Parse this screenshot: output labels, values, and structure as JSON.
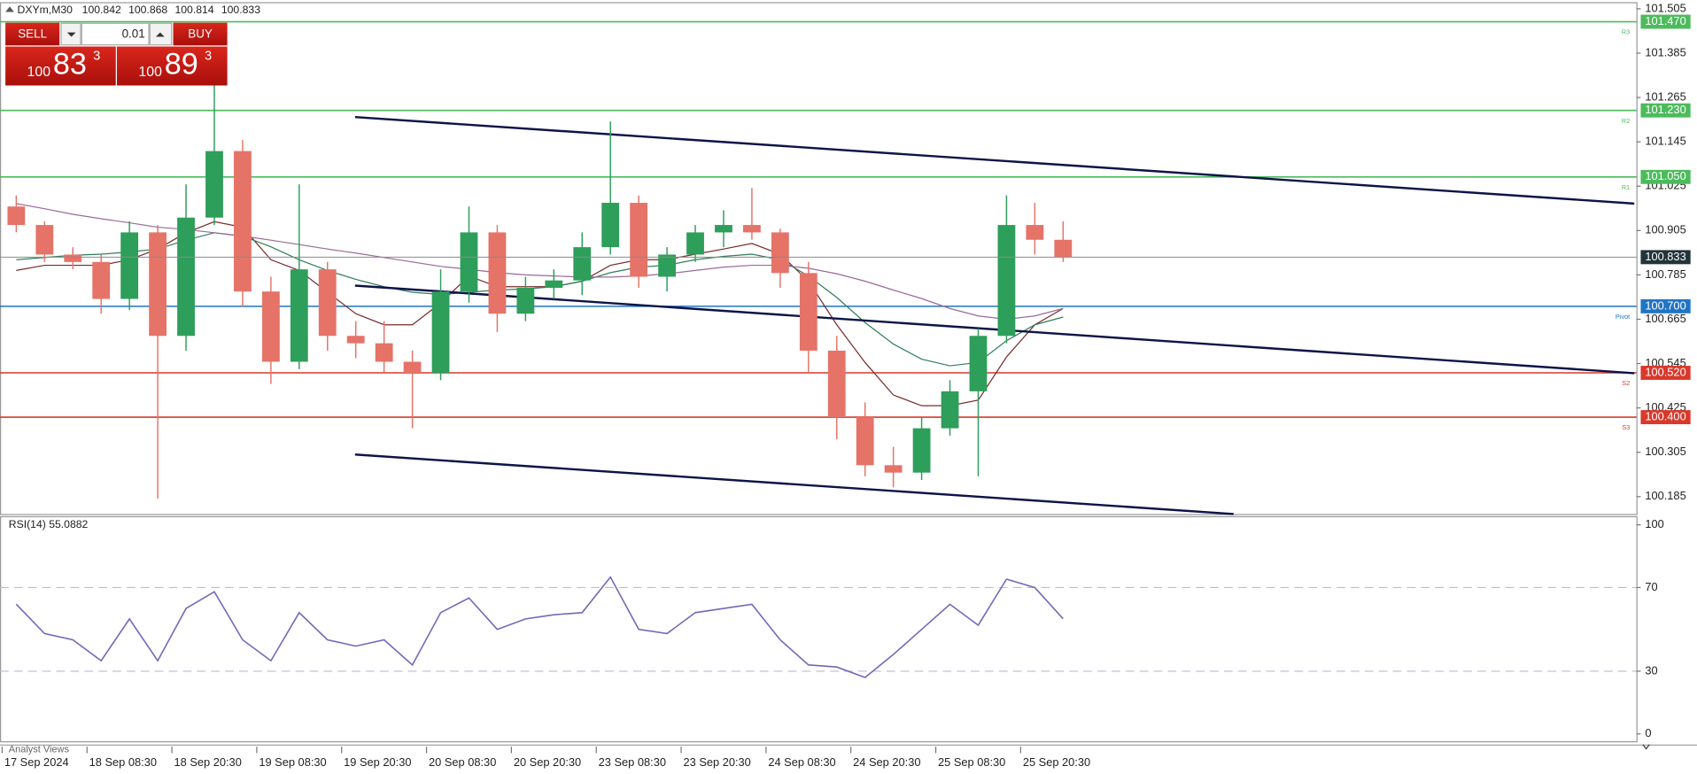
{
  "chart_data": [
    {
      "type": "candlestick",
      "title": "DXYm,M30",
      "ohlc_header": [
        100.842,
        100.868,
        100.814,
        100.833
      ],
      "x": [
        4,
        12,
        20,
        28,
        36,
        44,
        52,
        60,
        68,
        76,
        84,
        92,
        100,
        108,
        116,
        124,
        132,
        140,
        148,
        156,
        164,
        172,
        180,
        188,
        196,
        204,
        212,
        220,
        228,
        236,
        244,
        252,
        260,
        268,
        276,
        284,
        292,
        300
      ],
      "open": [
        100.97,
        100.92,
        100.84,
        100.82,
        100.72,
        100.9,
        100.62,
        100.94,
        101.12,
        100.74,
        100.55,
        100.8,
        100.62,
        100.6,
        100.55,
        100.52,
        100.74,
        100.9,
        100.68,
        100.75,
        100.77,
        100.86,
        100.98,
        100.78,
        100.84,
        100.9,
        100.92,
        100.9,
        100.79,
        100.58,
        100.4,
        100.27,
        100.25,
        100.37,
        100.47,
        100.62,
        100.92,
        100.88
      ],
      "high": [
        101.0,
        100.93,
        100.86,
        100.84,
        100.93,
        100.92,
        101.03,
        101.34,
        101.15,
        100.78,
        101.03,
        100.82,
        100.66,
        100.66,
        100.58,
        100.8,
        100.97,
        100.92,
        100.78,
        100.8,
        100.9,
        101.2,
        101.0,
        100.86,
        100.92,
        100.96,
        101.02,
        100.91,
        100.82,
        100.62,
        100.44,
        100.32,
        100.4,
        100.5,
        100.64,
        101.0,
        100.98,
        100.93
      ],
      "low": [
        100.9,
        100.82,
        100.8,
        100.68,
        100.69,
        100.18,
        100.58,
        100.92,
        100.7,
        100.49,
        100.53,
        100.58,
        100.56,
        100.52,
        100.37,
        100.5,
        100.71,
        100.63,
        100.66,
        100.72,
        100.73,
        100.84,
        100.75,
        100.74,
        100.82,
        100.86,
        100.88,
        100.75,
        100.52,
        100.34,
        100.24,
        100.21,
        100.23,
        100.35,
        100.24,
        100.6,
        100.84,
        100.82
      ],
      "close": [
        100.92,
        100.84,
        100.82,
        100.72,
        100.9,
        100.62,
        100.94,
        101.12,
        100.74,
        100.55,
        100.8,
        100.62,
        100.6,
        100.55,
        100.52,
        100.74,
        100.9,
        100.68,
        100.75,
        100.77,
        100.86,
        100.98,
        100.78,
        100.84,
        100.9,
        100.92,
        100.9,
        100.79,
        100.58,
        100.4,
        100.27,
        100.25,
        100.37,
        100.47,
        100.62,
        100.92,
        100.88,
        100.833
      ],
      "up_color": "#2e9e5b",
      "down_color": "#e57368",
      "overlays": [
        {
          "color": "#7a2a2a",
          "values": [
            100.797,
            100.811,
            100.811,
            100.811,
            100.826,
            100.855,
            100.899,
            100.929,
            100.914,
            100.826,
            100.797,
            100.738,
            100.68,
            100.65,
            100.65,
            100.709,
            100.782,
            100.753,
            100.753,
            100.753,
            100.768,
            100.811,
            100.826,
            100.826,
            100.841,
            100.855,
            100.87,
            100.841,
            100.768,
            100.65,
            100.548,
            100.46,
            100.431,
            100.431,
            100.446,
            100.563,
            100.65,
            100.694
          ]
        },
        {
          "color": "#2f7d5a",
          "values": [
            100.826,
            100.832,
            100.838,
            100.841,
            100.847,
            100.855,
            100.879,
            100.899,
            100.89,
            100.861,
            100.826,
            100.797,
            100.773,
            100.753,
            100.738,
            100.732,
            100.738,
            100.744,
            100.747,
            100.753,
            100.768,
            100.791,
            100.806,
            100.811,
            100.826,
            100.835,
            100.841,
            100.826,
            100.782,
            100.724,
            100.656,
            100.598,
            100.557,
            100.539,
            100.548,
            100.607,
            100.65,
            100.671
          ]
        },
        {
          "color": "#9a6a9a",
          "values": [
            100.978,
            100.964,
            100.949,
            100.937,
            100.926,
            100.914,
            100.908,
            100.899,
            100.89,
            100.879,
            100.867,
            100.855,
            100.844,
            100.832,
            100.82,
            100.808,
            100.8,
            100.791,
            100.785,
            100.782,
            100.779,
            100.779,
            100.782,
            100.788,
            100.797,
            100.806,
            100.811,
            100.811,
            100.803,
            100.788,
            100.768,
            100.744,
            100.721,
            100.694,
            100.674,
            100.665,
            100.674,
            100.694
          ]
        }
      ],
      "trendlines": [
        {
          "x": [
            99.8,
            461.5
          ],
          "y": [
            101.212,
            100.978
          ]
        },
        {
          "x": [
            99.8,
            461.5
          ],
          "y": [
            100.756,
            100.519
          ]
        },
        {
          "x": [
            99.8,
            348.2
          ],
          "y": [
            100.299,
            100.138
          ]
        }
      ],
      "levels": [
        {
          "value": 101.47,
          "label": "101.470",
          "tag": "R3",
          "color": "#4cbb5c"
        },
        {
          "value": 101.23,
          "label": "101.230",
          "tag": "R2",
          "color": "#4cbb5c"
        },
        {
          "value": 101.05,
          "label": "101.050",
          "tag": "R1",
          "color": "#4cbb5c"
        },
        {
          "value": 100.7,
          "label": "100.700",
          "tag": "Pivot",
          "color": "#1f74c4"
        },
        {
          "value": 100.52,
          "label": "100.520",
          "tag": "S2",
          "color": "#d9382b"
        },
        {
          "value": 100.4,
          "label": "100.400",
          "tag": "S3",
          "color": "#d9382b"
        }
      ],
      "last_price": 100.833,
      "xlim": [
        -0.6,
        462.1
      ],
      "ylim": [
        100.138,
        101.52
      ],
      "yticks": [
        101.505,
        101.385,
        101.265,
        101.145,
        101.025,
        100.905,
        100.785,
        100.665,
        100.545,
        100.425,
        100.305,
        100.185
      ]
    },
    {
      "type": "line",
      "title": "RSI(14) 55.0882",
      "x": [
        4,
        12,
        20,
        28,
        36,
        44,
        52,
        60,
        68,
        76,
        84,
        92,
        100,
        108,
        116,
        124,
        132,
        140,
        148,
        156,
        164,
        172,
        180,
        188,
        196,
        204,
        212,
        220,
        228,
        236,
        244,
        252,
        260,
        268,
        276,
        284,
        292,
        300
      ],
      "values": [
        62,
        48,
        45,
        35,
        55,
        35,
        60,
        68,
        45,
        35,
        58,
        45,
        42,
        45,
        33,
        58,
        65,
        50,
        55,
        57,
        58,
        75,
        50,
        48,
        58,
        60,
        62,
        45,
        33,
        32,
        27,
        38,
        50,
        62,
        52,
        74,
        70,
        55.09
      ],
      "color": "#7467b8",
      "levels": [
        70,
        30
      ],
      "xlim": [
        -0.6,
        462.1
      ],
      "ylim": [
        -4,
        103.6
      ],
      "yticks": [
        0,
        30,
        70,
        100
      ],
      "xticks": [
        {
          "value": 0,
          "label": "17 Sep 2024"
        },
        {
          "value": 24,
          "label": "18 Sep 08:30"
        },
        {
          "value": 48,
          "label": "18 Sep 20:30"
        },
        {
          "value": 72,
          "label": "19 Sep 08:30"
        },
        {
          "value": 96,
          "label": "19 Sep 20:30"
        },
        {
          "value": 120,
          "label": "20 Sep 08:30"
        },
        {
          "value": 144,
          "label": "20 Sep 20:30"
        },
        {
          "value": 168,
          "label": "23 Sep 08:30"
        },
        {
          "value": 192,
          "label": "23 Sep 20:30"
        },
        {
          "value": 216,
          "label": "24 Sep 08:30"
        },
        {
          "value": 240,
          "label": "24 Sep 20:30"
        },
        {
          "value": 264,
          "label": "25 Sep 08:30"
        },
        {
          "value": 288,
          "label": "25 Sep 20:30"
        }
      ]
    }
  ],
  "trade_panel": {
    "sell": "SELL",
    "buy": "BUY",
    "lot": "0.01",
    "bid": {
      "big": "100",
      "pips": "83",
      "point": "3"
    },
    "ask": {
      "big": "100",
      "pips": "89",
      "point": "3"
    }
  },
  "footer_tab": "Analyst Views"
}
